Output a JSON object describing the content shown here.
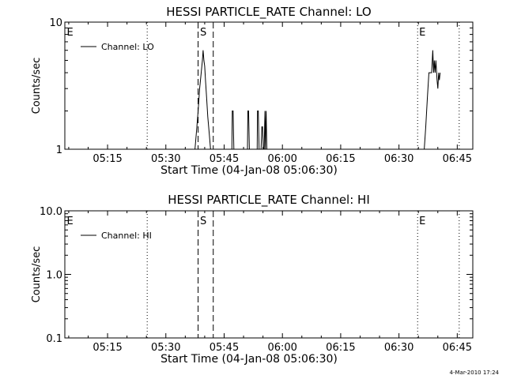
{
  "footer": {
    "timestamp": "4-Mar-2010 17:24"
  },
  "chart_data": [
    {
      "type": "line",
      "title": "HESSI PARTICLE_RATE Channel: LO",
      "xlabel": "Start Time (04-Jan-08 05:06:30)",
      "ylabel": "Counts/sec",
      "x_unit": "minutes",
      "xlim": [
        304,
        409
      ],
      "x_ticks": [
        315,
        330,
        345,
        360,
        375,
        390,
        405
      ],
      "x_tick_labels": [
        "05:15",
        "05:30",
        "05:45",
        "06:00",
        "06:15",
        "06:30",
        "06:45"
      ],
      "y_scale": "log",
      "ylim": [
        1,
        10
      ],
      "y_ticks": [
        1,
        10
      ],
      "y_tick_labels": [
        "1",
        "10"
      ],
      "grid": false,
      "legend_position": "top-left",
      "series": [
        {
          "name": "Channel: LO",
          "x": [
            337.5,
            337.9,
            338.3,
            338.7,
            339.1,
            339.4,
            339.6,
            339.8,
            340.0,
            340.2,
            340.5,
            340.8,
            341.2,
            341.5,
            347.0,
            347.1,
            347.3,
            347.5,
            351.0,
            351.1,
            351.3,
            351.5,
            353.5,
            353.6,
            353.8,
            354.0,
            354.5,
            354.7,
            354.9,
            355.1,
            355.3,
            355.5,
            355.6,
            355.8,
            356.0,
            396.5,
            396.9,
            397.3,
            397.7,
            398.0,
            398.4,
            398.7,
            398.9,
            399.1,
            399.3,
            399.5,
            399.8,
            400.0,
            400.2,
            400.4,
            400.6
          ],
          "y": [
            1,
            1.4,
            2.0,
            3.0,
            4.0,
            5.0,
            6.0,
            5.0,
            4.5,
            3.5,
            2.5,
            1.8,
            1.3,
            1,
            1,
            2,
            2,
            1,
            1,
            2,
            2,
            1,
            1,
            2,
            2,
            1,
            1,
            1.5,
            1.5,
            1,
            1,
            2,
            1,
            2,
            1,
            1,
            1.5,
            2.5,
            4.0,
            4.0,
            4.0,
            6.0,
            4.0,
            5.0,
            4.0,
            5.0,
            3.5,
            3.0,
            4.0,
            3.5,
            4.0
          ]
        }
      ],
      "markers": [
        {
          "x": 325.2,
          "style": "dotted",
          "label": ""
        },
        {
          "x": 338.3,
          "style": "dashed",
          "label": "S"
        },
        {
          "x": 342.2,
          "style": "dashed",
          "label": ""
        },
        {
          "x": 394.8,
          "style": "dotted",
          "label": ""
        },
        {
          "x": 405.5,
          "style": "dotted",
          "label": ""
        }
      ],
      "annotations": [
        {
          "text": "E",
          "x": 304.5
        },
        {
          "text": "S",
          "x": 338.8
        },
        {
          "text": "E",
          "x": 395.2
        }
      ]
    },
    {
      "type": "line",
      "title": "HESSI PARTICLE_RATE Channel: HI",
      "xlabel": "Start Time (04-Jan-08 05:06:30)",
      "ylabel": "Counts/sec",
      "x_unit": "minutes",
      "xlim": [
        304,
        409
      ],
      "x_ticks": [
        315,
        330,
        345,
        360,
        375,
        390,
        405
      ],
      "x_tick_labels": [
        "05:15",
        "05:30",
        "05:45",
        "06:00",
        "06:15",
        "06:30",
        "06:45"
      ],
      "y_scale": "log",
      "ylim": [
        0.1,
        10
      ],
      "y_ticks": [
        0.1,
        1,
        10
      ],
      "y_tick_labels": [
        "0.1",
        "1.0",
        "10.0"
      ],
      "grid": false,
      "legend_position": "top-left",
      "series": [
        {
          "name": "Channel: HI",
          "x": [],
          "y": []
        }
      ],
      "markers": [
        {
          "x": 325.2,
          "style": "dotted",
          "label": ""
        },
        {
          "x": 338.3,
          "style": "dashed",
          "label": "S"
        },
        {
          "x": 342.2,
          "style": "dashed",
          "label": ""
        },
        {
          "x": 394.8,
          "style": "dotted",
          "label": ""
        },
        {
          "x": 405.5,
          "style": "dotted",
          "label": ""
        }
      ],
      "annotations": [
        {
          "text": "E",
          "x": 304.5
        },
        {
          "text": "S",
          "x": 338.8
        },
        {
          "text": "E",
          "x": 395.2
        }
      ]
    }
  ]
}
